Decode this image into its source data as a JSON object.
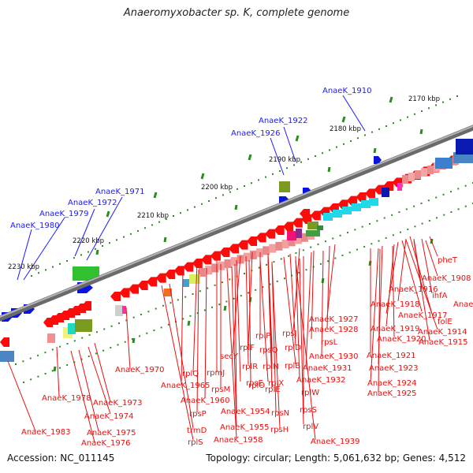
{
  "title": "Anaeromyxobacter sp. K, complete genome",
  "accession": "Accession: NC_011145",
  "topology": "Topology: circular; Length: 5,061,632 bp; Genes: 4,512",
  "colors": {
    "label_blue": "#1a1aff",
    "label_red": "#e81010",
    "backbone": "#8a8a8a",
    "tick": "#2e8b22",
    "gene_red": "#ff0a0a"
  },
  "ticks": [
    {
      "text": "2170 kbp",
      "row": "top"
    },
    {
      "text": "2180 kbp",
      "row": "top"
    },
    {
      "text": "2190 kbp",
      "row": "top"
    },
    {
      "text": "2200 kbp",
      "row": "top"
    },
    {
      "text": "2210 kbp",
      "row": "top"
    },
    {
      "text": "2220 kbp",
      "row": "top"
    },
    {
      "text": "2230 kbp",
      "row": "top"
    }
  ],
  "blue_labels": [
    "AnaeK_1910",
    "AnaeK_1922",
    "AnaeK_1926",
    "AnaeK_1971",
    "AnaeK_1972",
    "AnaeK_1979",
    "AnaeK_1980"
  ],
  "red_labels": [
    "pheT",
    "AnaeK_1908",
    "AnaeK_1916",
    "ihfA",
    "AnaeK_1918",
    "AnaeK_1917",
    "AnaeK_1911",
    "folE",
    "AnaeK_1919",
    "AnaeK_1914",
    "AnaeK_1920",
    "AnaeK_1915",
    "AnaeK_1927",
    "AnaeK_1928",
    "rpsJ",
    "rpsL",
    "rplP",
    "rplF",
    "rpsQ",
    "rplD",
    "secY",
    "AnaeK_1921",
    "AnaeK_1930",
    "rplR",
    "rplN",
    "rplB",
    "AnaeK_1931",
    "AnaeK_1923",
    "rpmJ",
    "rplQ",
    "AnaeK_1970",
    "rpsE",
    "rplX",
    "AnaeK_1932",
    "AnaeK_1924",
    "rpsM",
    "AnaeK_1965",
    "rplO",
    "rplE",
    "rplW",
    "AnaeK_1925",
    "AnaeK_1960",
    "AnaeK_1954",
    "rpsN",
    "rpsS",
    "rpsP",
    "AnaeK_1978",
    "AnaeK_1973",
    "AnaeK_1974",
    "AnaeK_1955",
    "rpsH",
    "rplV",
    "trmD",
    "AnaeK_1975",
    "AnaeK_1983",
    "rplS",
    "AnaeK_1958",
    "AnaeK_1939",
    "AnaeK_1976"
  ]
}
